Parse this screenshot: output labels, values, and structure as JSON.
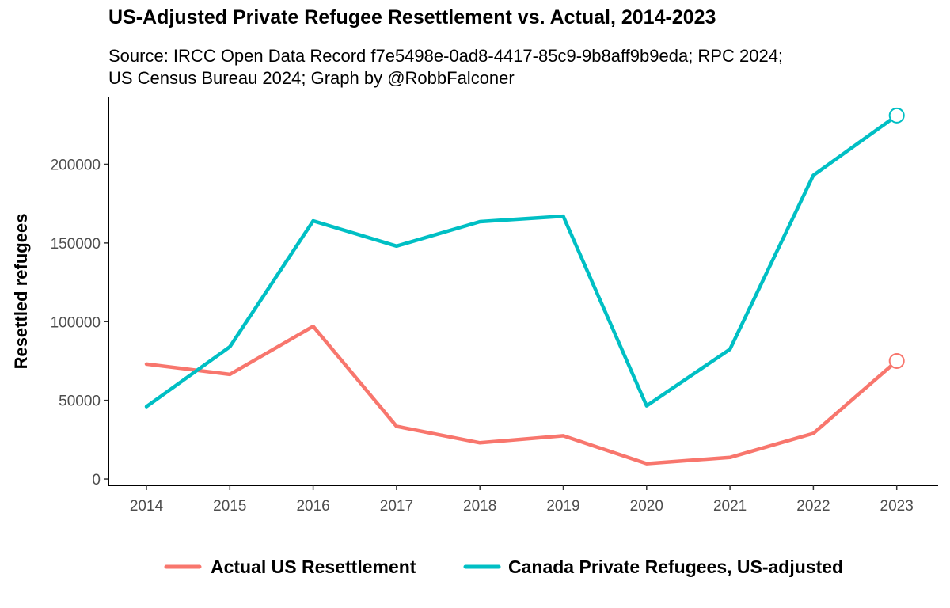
{
  "chart_data": {
    "type": "line",
    "title": "US-Adjusted Private Refugee Resettlement vs. Actual, 2014-2023",
    "subtitle_lines": [
      "Source: IRCC Open Data Record f7e5498e-0ad8-4417-85c9-9b8aff9b9eda; RPC 2024;",
      "US Census Bureau 2024; Graph by @RobbFalconer"
    ],
    "xlabel": "",
    "ylabel": "Resettled refugees",
    "x": [
      "2014",
      "2015",
      "2016",
      "2017",
      "2018",
      "2019",
      "2020",
      "2021",
      "2022",
      "2023"
    ],
    "yticks": [
      "0",
      "50000",
      "100000",
      "150000",
      "200000"
    ],
    "ylim": [
      -4000,
      243000
    ],
    "grid": false,
    "legend_position": "bottom",
    "series": [
      {
        "name": "Actual US Resettlement",
        "color": "#F8766D",
        "values": [
          73000,
          66500,
          97000,
          33500,
          23000,
          27500,
          9800,
          13700,
          29000,
          75000
        ],
        "end_marker": "open-circle"
      },
      {
        "name": "Canada Private Refugees, US-adjusted",
        "color": "#00BFC4",
        "values": [
          46000,
          84000,
          164000,
          148000,
          163500,
          167000,
          46500,
          82500,
          193000,
          231000
        ],
        "end_marker": "open-circle"
      }
    ]
  }
}
